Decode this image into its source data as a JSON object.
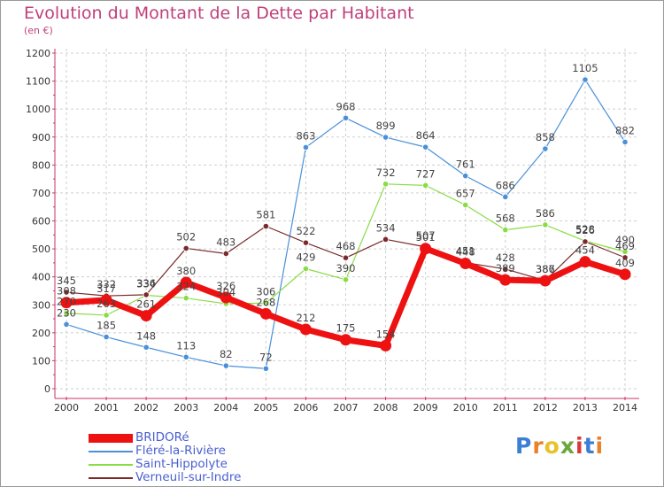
{
  "header": {
    "title": "Evolution du Montant de la Dette par Habitant",
    "subtitle": "(en €)"
  },
  "logo": {
    "letters": [
      "P",
      "r",
      "o",
      "x",
      "i",
      "t",
      "i"
    ],
    "colors": [
      "#3a7fd4",
      "#e8822a",
      "#e8c22a",
      "#6aa83a",
      "#d83a3a",
      "#3a7fd4",
      "#e8822a"
    ]
  },
  "chart_data": {
    "type": "line",
    "title": "Evolution du Montant de la Dette par Habitant",
    "subtitle": "(en €)",
    "xlabel": "",
    "ylabel": "",
    "x": [
      2000,
      2001,
      2002,
      2003,
      2004,
      2005,
      2006,
      2007,
      2008,
      2009,
      2010,
      2011,
      2012,
      2013,
      2014
    ],
    "ylim": [
      0,
      1200
    ],
    "yticks": [
      0,
      100,
      200,
      300,
      400,
      500,
      600,
      700,
      800,
      900,
      1000,
      1100,
      1200
    ],
    "grid": "horizontal-dashed",
    "legend": "bottom-left",
    "series": [
      {
        "name": "BRIDORé",
        "color": "#ee1111",
        "values": [
          308,
          317,
          261,
          380,
          326,
          268,
          212,
          175,
          154,
          501,
          448,
          389,
          386,
          454,
          409
        ],
        "labels": [
          "308",
          "317",
          "261",
          "380",
          "326",
          "268",
          "212",
          "175",
          "154",
          "501",
          "448",
          "389",
          "386",
          "454",
          "409"
        ]
      },
      {
        "name": "Fléré-la-Rivière",
        "color": "#4a90d9",
        "values": [
          230,
          185,
          148,
          113,
          82,
          72,
          863,
          968,
          899,
          864,
          761,
          686,
          858,
          1105,
          882
        ],
        "labels": [
          "230",
          "185",
          "148",
          "113",
          "82",
          "72",
          "863",
          "968",
          "899",
          "864",
          "761",
          "686",
          "858",
          "1105",
          "882"
        ]
      },
      {
        "name": "Saint-Hippolyte",
        "color": "#88dd44",
        "values": [
          270,
          263,
          334,
          324,
          304,
          306,
          429,
          390,
          732,
          727,
          657,
          568,
          586,
          528,
          490
        ],
        "labels": [
          "270",
          "263",
          "334",
          "324",
          "304",
          "306",
          "429",
          "390",
          "732",
          "727",
          "657",
          "568",
          "586",
          "528",
          "490"
        ]
      },
      {
        "name": "Verneuil-sur-Indre",
        "color": "#7a2a2a",
        "values": [
          345,
          332,
          336,
          502,
          483,
          581,
          522,
          468,
          534,
          507,
          451,
          428,
          387,
          526,
          469
        ],
        "labels": [
          "345",
          "332",
          "336",
          "502",
          "483",
          "581",
          "522",
          "468",
          "534",
          "507",
          "451",
          "428",
          "387",
          "526",
          "469"
        ]
      }
    ]
  }
}
